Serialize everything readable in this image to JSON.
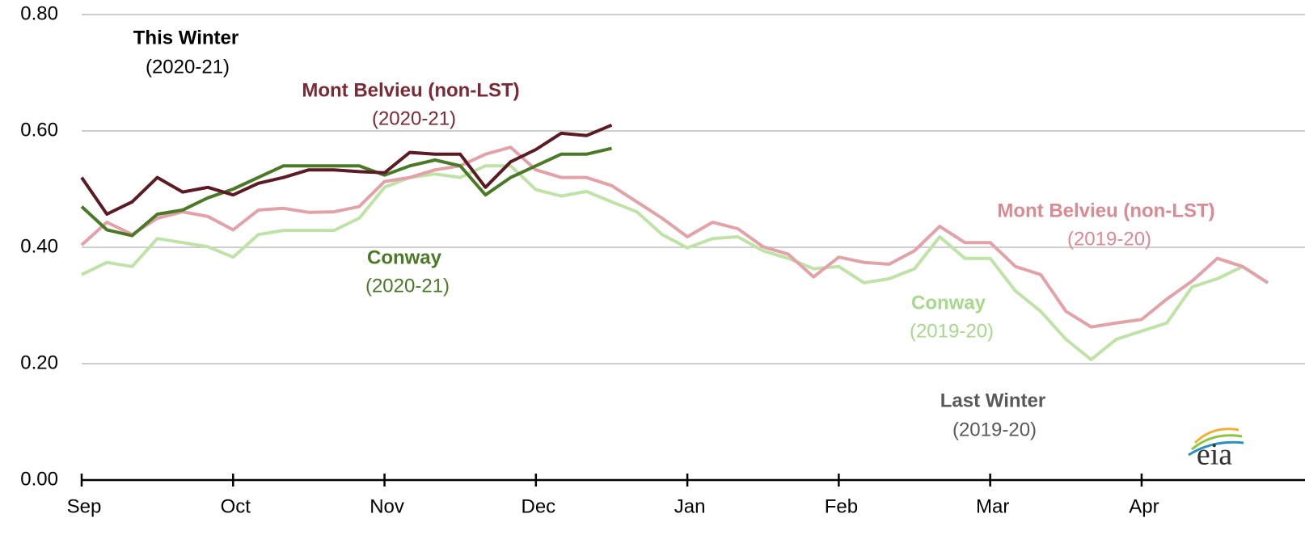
{
  "chart_data": {
    "type": "line",
    "categories": [
      "Sep",
      null,
      null,
      null,
      null,
      null,
      "Oct",
      null,
      null,
      null,
      null,
      null,
      "Nov",
      null,
      null,
      null,
      null,
      null,
      "Dec",
      null,
      null,
      null,
      null,
      null,
      "Jan",
      null,
      null,
      null,
      null,
      null,
      "Feb",
      null,
      null,
      null,
      null,
      null,
      "Mar",
      null,
      null,
      null,
      null,
      null,
      "Apr",
      null,
      null,
      null,
      null,
      null
    ],
    "ylim": [
      0,
      0.8
    ],
    "yticks": [
      {
        "value": 0,
        "label": "0.00"
      },
      {
        "value": 0.2,
        "label": "0.20"
      },
      {
        "value": 0.4,
        "label": "0.40"
      },
      {
        "value": 0.6,
        "label": "0.60"
      },
      {
        "value": 0.8,
        "label": "0.80"
      }
    ],
    "grid": true,
    "series": [
      {
        "name": "Mont Belvieu (non-LST)",
        "period": "(2020-21)",
        "color": "#5c1a24",
        "values": [
          0.52,
          0.457,
          0.478,
          0.52,
          0.495,
          0.503,
          0.49,
          0.51,
          0.52,
          0.533,
          0.533,
          0.53,
          0.528,
          0.563,
          0.56,
          0.56,
          0.503,
          0.547,
          0.568,
          0.596,
          0.592,
          0.61,
          null,
          null,
          null,
          null,
          null,
          null,
          null,
          null,
          null,
          null,
          null,
          null,
          null,
          null,
          null,
          null,
          null,
          null,
          null,
          null,
          null,
          null,
          null,
          null,
          null,
          null
        ]
      },
      {
        "name": "Conway",
        "period": "(2020-21)",
        "color": "#4a7a25",
        "values": [
          0.47,
          0.43,
          0.42,
          0.457,
          0.464,
          0.485,
          0.5,
          0.52,
          0.54,
          0.54,
          0.54,
          0.54,
          0.524,
          0.54,
          0.55,
          0.54,
          0.49,
          0.52,
          0.54,
          0.56,
          0.56,
          0.57,
          null,
          null,
          null,
          null,
          null,
          null,
          null,
          null,
          null,
          null,
          null,
          null,
          null,
          null,
          null,
          null,
          null,
          null,
          null,
          null,
          null,
          null,
          null,
          null,
          null,
          null
        ]
      },
      {
        "name": "Mont Belvieu (non-LST)",
        "period": "(2019-20)",
        "color": "#e3a1a8",
        "values": [
          0.404,
          0.443,
          0.422,
          0.45,
          0.461,
          0.453,
          0.43,
          0.464,
          0.467,
          0.46,
          0.461,
          0.47,
          0.513,
          0.52,
          0.533,
          0.54,
          0.56,
          0.572,
          0.533,
          0.52,
          0.52,
          0.506,
          0.478,
          0.45,
          0.418,
          0.443,
          0.432,
          0.401,
          0.388,
          0.349,
          0.383,
          0.374,
          0.371,
          0.394,
          0.436,
          0.408,
          0.408,
          0.367,
          0.353,
          0.29,
          0.263,
          0.27,
          0.276,
          0.311,
          0.342,
          0.381,
          0.367,
          0.339
        ]
      },
      {
        "name": "Conway",
        "period": "(2019-20)",
        "color": "#bfe3a6",
        "values": [
          0.353,
          0.374,
          0.367,
          0.415,
          0.408,
          0.401,
          0.383,
          0.422,
          0.429,
          0.429,
          0.429,
          0.45,
          0.503,
          0.52,
          0.526,
          0.52,
          0.54,
          0.54,
          0.499,
          0.488,
          0.496,
          0.478,
          0.461,
          0.422,
          0.399,
          0.415,
          0.418,
          0.394,
          0.381,
          0.363,
          0.367,
          0.339,
          0.346,
          0.363,
          0.418,
          0.381,
          0.381,
          0.325,
          0.29,
          0.242,
          0.207,
          0.242,
          0.256,
          0.27,
          0.332,
          0.346,
          0.367,
          0.339
        ]
      }
    ],
    "annotations": [
      {
        "title": "This Winter",
        "period": "(2020-21)"
      },
      {
        "title": "Last Winter",
        "period": "(2019-20)"
      }
    ],
    "logo": "eia"
  }
}
